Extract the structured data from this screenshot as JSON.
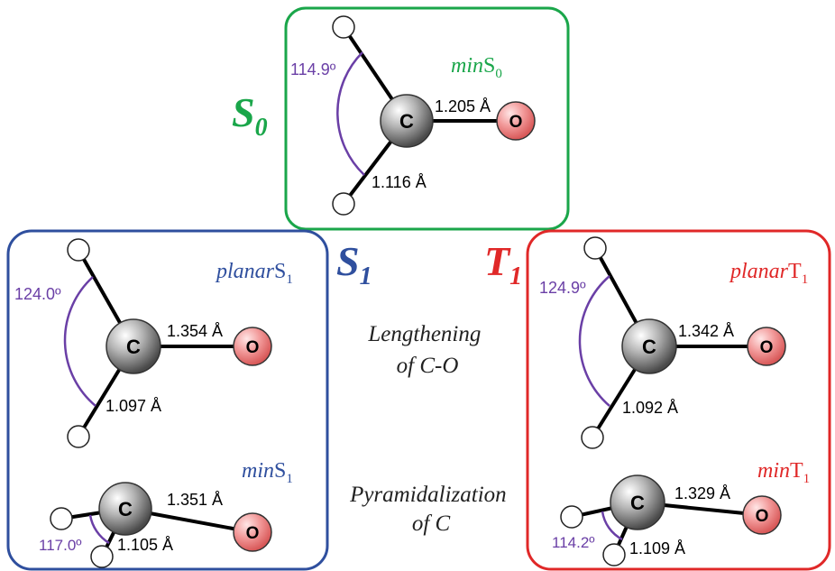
{
  "colors": {
    "s0": "#1aa64a",
    "s1": "#2f4f9e",
    "t1": "#e02828",
    "angle_arc": "#6a3fa6",
    "bond": "#000000",
    "oxygen_fill": "#f07c7c",
    "carbon_fill": "#8a8a8a"
  },
  "states": {
    "s0": {
      "symbol": "S",
      "subscript": "0"
    },
    "s1": {
      "symbol": "S",
      "subscript": "1"
    },
    "t1": {
      "symbol": "T",
      "subscript": "1"
    }
  },
  "annotations": {
    "lengthening_line1": "Lengthening",
    "lengthening_line2": "of C-O",
    "pyramidalization_line1": "Pyramidalization",
    "pyramidalization_line2": "of C"
  },
  "structures": {
    "min_s0": {
      "label_prefix": "min",
      "label_state": "S",
      "label_sub": "0",
      "angle": "114.9º",
      "co_bond": "1.205 Å",
      "ch_bond": "1.116 Å"
    },
    "planar_s1": {
      "label_prefix": "planar",
      "label_state": "S",
      "label_sub": "1",
      "angle": "124.0º",
      "co_bond": "1.354 Å",
      "ch_bond": "1.097 Å"
    },
    "min_s1": {
      "label_prefix": "min",
      "label_state": "S",
      "label_sub": "1",
      "angle": "117.0º",
      "co_bond": "1.351 Å",
      "ch_bond": "1.105 Å"
    },
    "planar_t1": {
      "label_prefix": "planar",
      "label_state": "T",
      "label_sub": "1",
      "angle": "124.9º",
      "co_bond": "1.342 Å",
      "ch_bond": "1.092 Å"
    },
    "min_t1": {
      "label_prefix": "min",
      "label_state": "T",
      "label_sub": "1",
      "angle": "114.2º",
      "co_bond": "1.329 Å",
      "ch_bond": "1.109 Å"
    }
  },
  "atoms": {
    "carbon": "C",
    "oxygen": "O"
  }
}
